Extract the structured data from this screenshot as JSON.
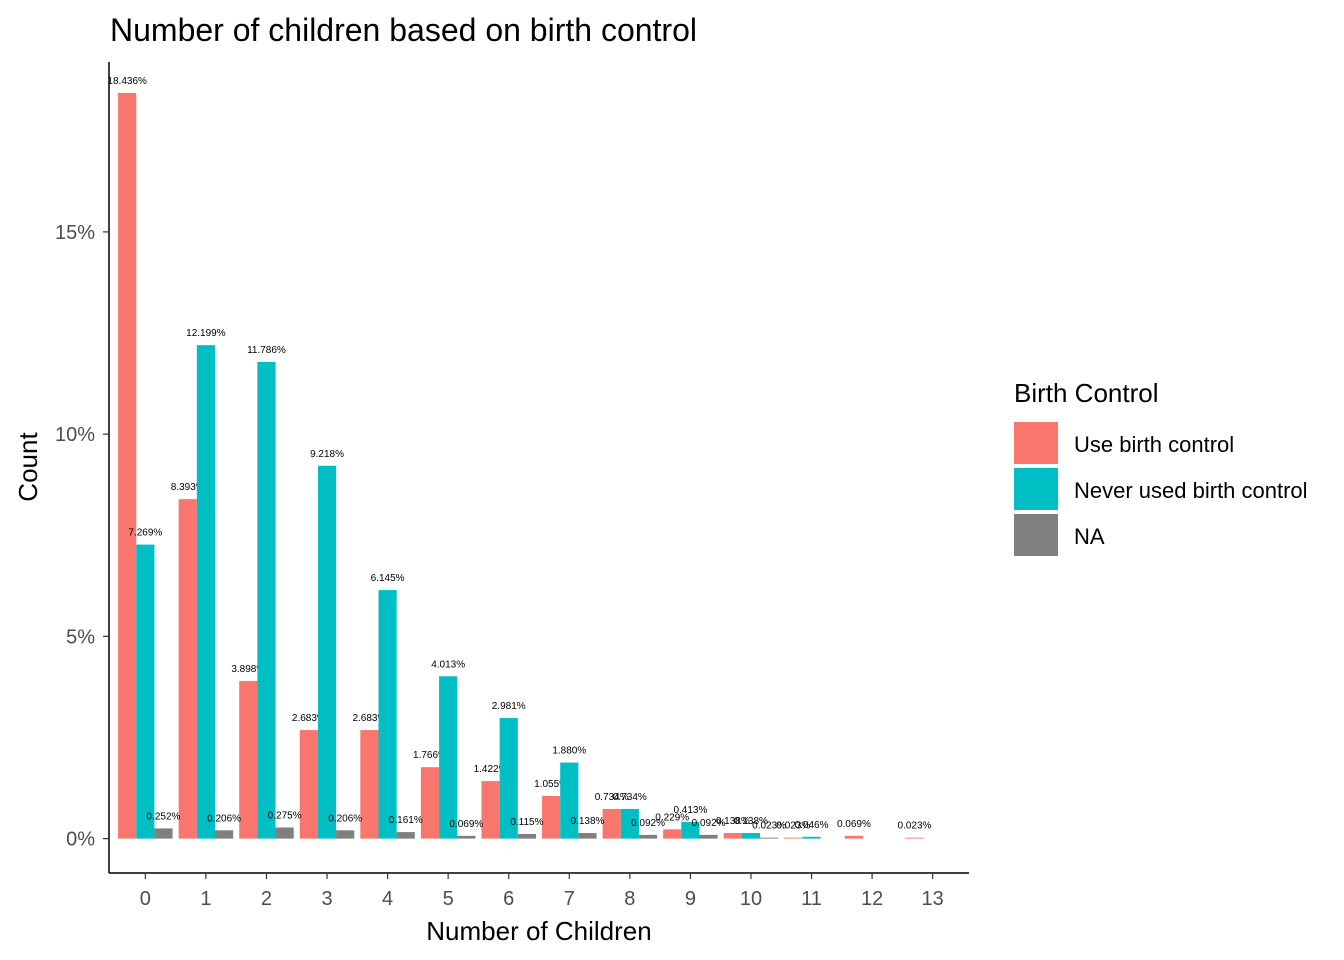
{
  "chart_data": {
    "type": "bar",
    "title": "Number of children based on birth control",
    "xlabel": "Number of Children",
    "ylabel": "Count",
    "categories": [
      "0",
      "1",
      "2",
      "3",
      "4",
      "5",
      "6",
      "7",
      "8",
      "9",
      "10",
      "11",
      "12",
      "13"
    ],
    "y_ticks": [
      {
        "value": 0,
        "label": "0%"
      },
      {
        "value": 5,
        "label": "5%"
      },
      {
        "value": 10,
        "label": "10%"
      },
      {
        "value": 15,
        "label": "15%"
      }
    ],
    "ylim": [
      -0.85,
      19.2
    ],
    "grid": false,
    "legend": {
      "title": "Birth Control",
      "position": "right"
    },
    "series": [
      {
        "name": "Use birth control",
        "color": "#F8766D",
        "values": [
          18.436,
          8.393,
          3.898,
          2.683,
          2.683,
          1.766,
          1.422,
          1.055,
          0.734,
          0.229,
          0.138,
          0.023,
          0.069,
          0.023
        ],
        "labels": [
          "18.436%",
          "8.393%",
          "3.898%",
          "2.683%",
          "2.683%",
          "1.766%",
          "1.422%",
          "1.055%",
          "0.734%",
          "0.229%",
          "0.138%",
          "0.023%",
          "0.069%",
          "0.023%"
        ]
      },
      {
        "name": "Never used birth control",
        "color": "#00BFC4",
        "values": [
          7.269,
          12.199,
          11.786,
          9.218,
          6.145,
          4.013,
          2.981,
          1.88,
          0.734,
          0.413,
          0.138,
          0.046,
          null,
          null
        ],
        "labels": [
          "7.269%",
          "12.199%",
          "11.786%",
          "9.218%",
          "6.145%",
          "4.013%",
          "2.981%",
          "1.880%",
          "0.734%",
          "0.413%",
          "0.138%",
          "0.046%",
          "",
          ""
        ]
      },
      {
        "name": "NA",
        "color": "#7F7F7F",
        "values": [
          0.252,
          0.206,
          0.275,
          0.206,
          0.161,
          0.069,
          0.115,
          0.138,
          0.092,
          0.092,
          0.023,
          null,
          null,
          null
        ],
        "labels": [
          "0.252%",
          "0.206%",
          "0.275%",
          "0.206%",
          "0.161%",
          "0.069%",
          "0.115%",
          "0.138%",
          "0.092%",
          "0.092%",
          "0.023%",
          "",
          "",
          ""
        ]
      }
    ]
  }
}
